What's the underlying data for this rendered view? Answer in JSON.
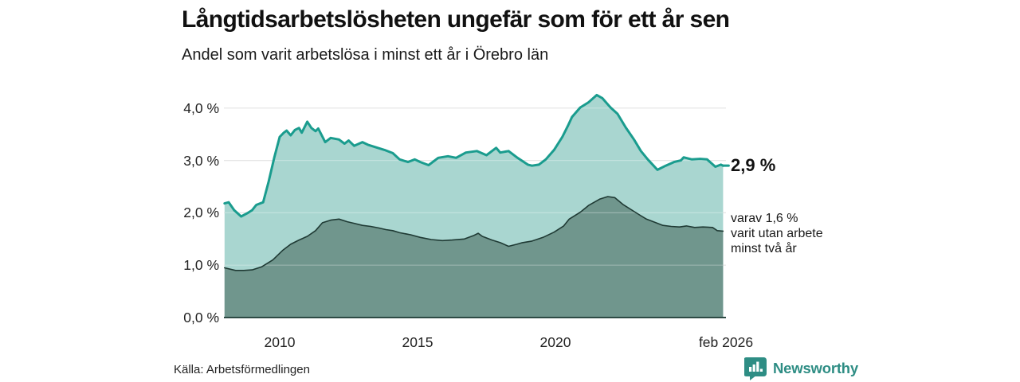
{
  "header": {
    "title": "Långtidsarbetslösheten ungefär som för ett år sen",
    "subtitle": "Andel som varit arbetslösa i minst ett år i Örebro län"
  },
  "chart_data": {
    "type": "area",
    "title": "Långtidsarbetslösheten ungefär som för ett år sen",
    "subtitle": "Andel som varit arbetslösa i minst ett år i Örebro län",
    "grid": true,
    "legend_position": "right-of-line-end",
    "x_axis": {
      "range": [
        2008.0,
        2026.17
      ],
      "tick_years": [
        2010,
        2015,
        2020,
        2026.08
      ],
      "tick_labels": [
        "2010",
        "2015",
        "2020",
        "feb 2026"
      ]
    },
    "y_axis": {
      "range": [
        0,
        4.4
      ],
      "tick_values": [
        0,
        1,
        2,
        3,
        4
      ],
      "tick_labels": [
        "0,0 %",
        "1,0 %",
        "2,0 %",
        "3,0 %",
        "4,0 %"
      ]
    },
    "series": [
      {
        "name": "Andel arbetslösa minst ett år",
        "end_value": 2.9,
        "end_label": "2,9 %",
        "line_color": "#1a9c8e",
        "fill_color": "#a9d6d0",
        "line_width": 3,
        "points": [
          [
            2008.0,
            2.18
          ],
          [
            2008.15,
            2.2
          ],
          [
            2008.35,
            2.05
          ],
          [
            2008.6,
            1.93
          ],
          [
            2008.85,
            2.0
          ],
          [
            2009.0,
            2.05
          ],
          [
            2009.15,
            2.15
          ],
          [
            2009.4,
            2.2
          ],
          [
            2009.6,
            2.6
          ],
          [
            2009.8,
            3.05
          ],
          [
            2010.0,
            3.45
          ],
          [
            2010.15,
            3.53
          ],
          [
            2010.25,
            3.57
          ],
          [
            2010.4,
            3.48
          ],
          [
            2010.55,
            3.58
          ],
          [
            2010.7,
            3.62
          ],
          [
            2010.8,
            3.53
          ],
          [
            2011.0,
            3.74
          ],
          [
            2011.15,
            3.62
          ],
          [
            2011.3,
            3.56
          ],
          [
            2011.4,
            3.61
          ],
          [
            2011.65,
            3.35
          ],
          [
            2011.85,
            3.43
          ],
          [
            2012.15,
            3.4
          ],
          [
            2012.35,
            3.32
          ],
          [
            2012.5,
            3.38
          ],
          [
            2012.7,
            3.28
          ],
          [
            2013.0,
            3.35
          ],
          [
            2013.2,
            3.3
          ],
          [
            2013.5,
            3.25
          ],
          [
            2013.8,
            3.2
          ],
          [
            2014.1,
            3.14
          ],
          [
            2014.35,
            3.02
          ],
          [
            2014.65,
            2.97
          ],
          [
            2014.9,
            3.02
          ],
          [
            2015.1,
            2.97
          ],
          [
            2015.4,
            2.91
          ],
          [
            2015.75,
            3.05
          ],
          [
            2016.1,
            3.08
          ],
          [
            2016.4,
            3.05
          ],
          [
            2016.75,
            3.15
          ],
          [
            2017.15,
            3.18
          ],
          [
            2017.5,
            3.1
          ],
          [
            2017.85,
            3.24
          ],
          [
            2018.0,
            3.15
          ],
          [
            2018.3,
            3.18
          ],
          [
            2018.6,
            3.06
          ],
          [
            2019.0,
            2.92
          ],
          [
            2019.15,
            2.9
          ],
          [
            2019.4,
            2.92
          ],
          [
            2019.65,
            3.02
          ],
          [
            2019.95,
            3.2
          ],
          [
            2020.25,
            3.45
          ],
          [
            2020.45,
            3.66
          ],
          [
            2020.6,
            3.83
          ],
          [
            2020.9,
            4.01
          ],
          [
            2021.2,
            4.11
          ],
          [
            2021.5,
            4.25
          ],
          [
            2021.7,
            4.19
          ],
          [
            2022.0,
            4.01
          ],
          [
            2022.25,
            3.89
          ],
          [
            2022.55,
            3.63
          ],
          [
            2022.85,
            3.4
          ],
          [
            2023.1,
            3.18
          ],
          [
            2023.35,
            3.02
          ],
          [
            2023.7,
            2.82
          ],
          [
            2024.0,
            2.9
          ],
          [
            2024.3,
            2.97
          ],
          [
            2024.55,
            3.0
          ],
          [
            2024.65,
            3.06
          ],
          [
            2024.95,
            3.02
          ],
          [
            2025.25,
            3.03
          ],
          [
            2025.5,
            3.02
          ],
          [
            2025.8,
            2.88
          ],
          [
            2026.0,
            2.92
          ],
          [
            2026.08,
            2.9
          ]
        ]
      },
      {
        "name": "varav utan arbete minst två år",
        "end_value": 1.6,
        "end_label": "varav 1,6 % varit utan arbete minst två år",
        "line_color": "#1f3a34",
        "fill_color": "#70968d",
        "line_width": 1.6,
        "points": [
          [
            2008.0,
            0.95
          ],
          [
            2008.4,
            0.9
          ],
          [
            2008.7,
            0.9
          ],
          [
            2009.0,
            0.91
          ],
          [
            2009.35,
            0.97
          ],
          [
            2009.75,
            1.1
          ],
          [
            2010.1,
            1.28
          ],
          [
            2010.4,
            1.4
          ],
          [
            2010.7,
            1.48
          ],
          [
            2011.0,
            1.55
          ],
          [
            2011.3,
            1.66
          ],
          [
            2011.55,
            1.81
          ],
          [
            2011.85,
            1.86
          ],
          [
            2012.15,
            1.88
          ],
          [
            2012.45,
            1.83
          ],
          [
            2012.7,
            1.8
          ],
          [
            2013.0,
            1.76
          ],
          [
            2013.3,
            1.74
          ],
          [
            2013.6,
            1.71
          ],
          [
            2013.85,
            1.68
          ],
          [
            2014.1,
            1.66
          ],
          [
            2014.35,
            1.62
          ],
          [
            2014.75,
            1.58
          ],
          [
            2015.1,
            1.53
          ],
          [
            2015.5,
            1.49
          ],
          [
            2015.9,
            1.47
          ],
          [
            2016.25,
            1.48
          ],
          [
            2016.7,
            1.5
          ],
          [
            2017.05,
            1.57
          ],
          [
            2017.2,
            1.61
          ],
          [
            2017.35,
            1.55
          ],
          [
            2017.7,
            1.48
          ],
          [
            2018.0,
            1.43
          ],
          [
            2018.3,
            1.36
          ],
          [
            2018.6,
            1.4
          ],
          [
            2018.8,
            1.43
          ],
          [
            2019.15,
            1.46
          ],
          [
            2019.55,
            1.53
          ],
          [
            2019.95,
            1.63
          ],
          [
            2020.3,
            1.75
          ],
          [
            2020.5,
            1.88
          ],
          [
            2020.9,
            2.01
          ],
          [
            2021.2,
            2.14
          ],
          [
            2021.6,
            2.26
          ],
          [
            2021.9,
            2.31
          ],
          [
            2022.15,
            2.29
          ],
          [
            2022.45,
            2.16
          ],
          [
            2022.75,
            2.06
          ],
          [
            2023.05,
            1.96
          ],
          [
            2023.3,
            1.88
          ],
          [
            2023.6,
            1.82
          ],
          [
            2023.9,
            1.76
          ],
          [
            2024.2,
            1.74
          ],
          [
            2024.5,
            1.73
          ],
          [
            2024.75,
            1.75
          ],
          [
            2025.05,
            1.72
          ],
          [
            2025.35,
            1.73
          ],
          [
            2025.7,
            1.72
          ],
          [
            2025.87,
            1.66
          ],
          [
            2026.08,
            1.65
          ]
        ]
      }
    ]
  },
  "annotations": {
    "value_main": "2,9 %",
    "secondary_lines": [
      "varav 1,6 %",
      "varit utan arbete",
      "minst två år"
    ]
  },
  "footer": {
    "source": "Källa: Arbetsförmedlingen",
    "brand": "Newsworthy"
  },
  "colors": {
    "background": "#ffffff",
    "gridline": "#dcdcdc",
    "baseline": "#2e4b45",
    "series1_line": "#1a9c8e",
    "series1_fill": "#a9d6d0",
    "series2_line": "#1f3a34",
    "series2_fill": "#70968d",
    "brand_teal": "#2e8d84",
    "text": "#1a1a1a"
  }
}
